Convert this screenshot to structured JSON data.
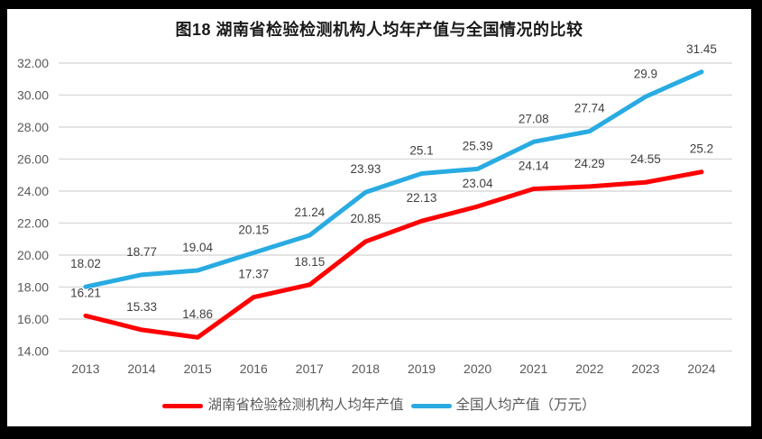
{
  "chart_data": {
    "type": "line",
    "title": "图18 湖南省检验检测机构人均年产值与全国情况的比较",
    "categories": [
      "2013",
      "2014",
      "2015",
      "2016",
      "2017",
      "2018",
      "2019",
      "2020",
      "2021",
      "2022",
      "2023",
      "2024"
    ],
    "series": [
      {
        "name": "湖南省检验检测机构人均年产值",
        "color": "#ff0000",
        "values": [
          16.21,
          15.33,
          14.86,
          17.37,
          18.15,
          20.85,
          22.13,
          23.04,
          24.14,
          24.29,
          24.55,
          25.2
        ],
        "labels": [
          "16.21",
          "15.33",
          "14.86",
          "17.37",
          "18.15",
          "20.85",
          "22.13",
          "23.04",
          "24.14",
          "24.29",
          "24.55",
          "25.2"
        ]
      },
      {
        "name": "全国人均产值（万元）",
        "color": "#29abe2",
        "values": [
          18.02,
          18.77,
          19.04,
          20.15,
          21.24,
          23.93,
          25.1,
          25.39,
          27.08,
          27.74,
          29.9,
          31.45
        ],
        "labels": [
          "18.02",
          "18.77",
          "19.04",
          "20.15",
          "21.24",
          "23.93",
          "25.1",
          "25.39",
          "27.08",
          "27.74",
          "29.9",
          "31.45"
        ]
      }
    ],
    "ylim": [
      14,
      32
    ],
    "y_tick_step": 2,
    "y_ticks": [
      "14.00",
      "16.00",
      "18.00",
      "20.00",
      "22.00",
      "24.00",
      "26.00",
      "28.00",
      "30.00",
      "32.00"
    ],
    "xlabel": "",
    "ylabel": "",
    "grid": true,
    "legend_position": "bottom"
  }
}
